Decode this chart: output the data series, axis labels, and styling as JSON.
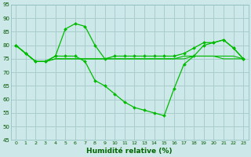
{
  "xlabel": "Humidité relative (%)",
  "xlim": [
    -0.5,
    23.5
  ],
  "ylim": [
    45,
    95
  ],
  "yticks": [
    45,
    50,
    55,
    60,
    65,
    70,
    75,
    80,
    85,
    90,
    95
  ],
  "xticks": [
    0,
    1,
    2,
    3,
    4,
    5,
    6,
    7,
    8,
    9,
    10,
    11,
    12,
    13,
    14,
    15,
    16,
    17,
    18,
    19,
    20,
    21,
    22,
    23
  ],
  "bg_color": "#cce8e8",
  "grid_color": "#aacccc",
  "line_color": "#00bb00",
  "series_marked": [
    [
      80,
      77,
      74,
      74,
      76,
      86,
      88,
      87,
      80,
      75,
      76,
      76,
      76,
      76,
      76,
      76,
      76,
      77,
      79,
      81,
      81,
      82,
      79,
      75
    ],
    [
      80,
      77,
      74,
      74,
      76,
      76,
      76,
      74,
      67,
      65,
      62,
      59,
      57,
      56,
      55,
      54,
      64,
      73,
      76,
      80,
      81,
      82,
      79,
      75
    ]
  ],
  "series_plain": [
    [
      80,
      77,
      74,
      74,
      75,
      75,
      75,
      75,
      75,
      75,
      75,
      75,
      75,
      75,
      75,
      75,
      75,
      75,
      76,
      76,
      76,
      76,
      76,
      75
    ],
    [
      80,
      77,
      74,
      74,
      75,
      75,
      75,
      75,
      75,
      75,
      75,
      75,
      75,
      75,
      75,
      75,
      75,
      76,
      76,
      76,
      76,
      75,
      75,
      75
    ]
  ]
}
